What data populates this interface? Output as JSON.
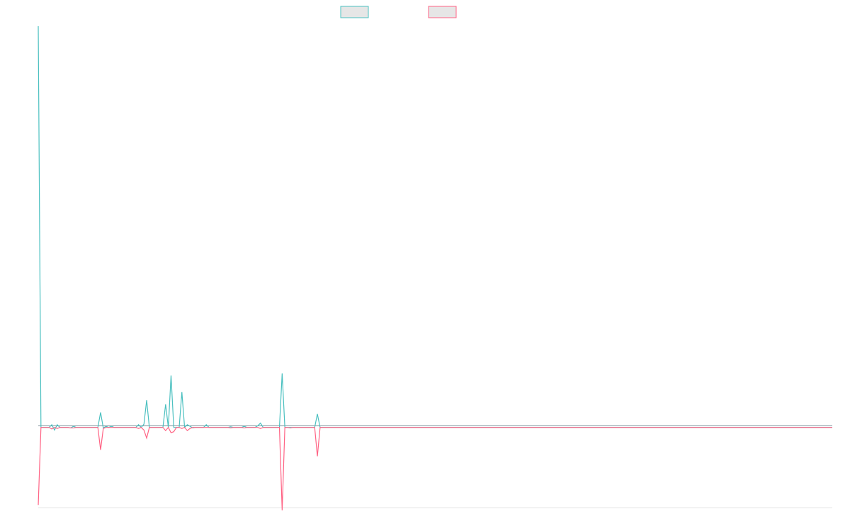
{
  "chart_data": {
    "type": "line",
    "title": "",
    "xlabel": "",
    "ylabel": "",
    "grid": false,
    "legend_position": "top-center",
    "ylim": [
      -1.5,
      7.5
    ],
    "xlim": [
      0,
      293
    ],
    "x": [
      0,
      1,
      2,
      3,
      4,
      5,
      6,
      7,
      8,
      9,
      10,
      11,
      12,
      13,
      14,
      15,
      16,
      17,
      18,
      19,
      20,
      21,
      22,
      23,
      24,
      25,
      26,
      27,
      28,
      29,
      30,
      31,
      32,
      33,
      34,
      35,
      36,
      37,
      38,
      39,
      40,
      41,
      42,
      43,
      44,
      45,
      46,
      47,
      48,
      49,
      50,
      51,
      52,
      53,
      54,
      55,
      56,
      57,
      58,
      59,
      60,
      61,
      62,
      63,
      64,
      65,
      66,
      67,
      68,
      69,
      70,
      71,
      72,
      73,
      74,
      75,
      76,
      77,
      78,
      79,
      80,
      81,
      82,
      83,
      84,
      85,
      86,
      87,
      88,
      89,
      90,
      91,
      92,
      93,
      94,
      95,
      96,
      97,
      98,
      99,
      100,
      101,
      102,
      103,
      104,
      293
    ],
    "series": [
      {
        "color": "#4bc0c0",
        "values": [
          7.5,
          0,
          0,
          0,
          0,
          0.05,
          -0.05,
          0.05,
          0,
          0,
          0,
          0,
          -0.01,
          0.02,
          0,
          0,
          0,
          0,
          0,
          0,
          0,
          0,
          0,
          0.28,
          -0.01,
          0.02,
          0,
          0.02,
          0,
          0,
          0,
          0,
          0,
          0,
          0,
          0,
          0,
          0.05,
          0,
          0.06,
          0.51,
          0,
          0,
          0,
          0,
          0,
          0,
          0.43,
          0,
          0.97,
          0,
          0,
          0,
          0.66,
          0,
          0.05,
          0.02,
          -0.01,
          0,
          0,
          0,
          0,
          0.05,
          0,
          0,
          0,
          0,
          0,
          0,
          0,
          0,
          0.01,
          0,
          0,
          0,
          0,
          0.02,
          0,
          0,
          0,
          0,
          0.03,
          0.08,
          0,
          0,
          0,
          0,
          0,
          0,
          0,
          1.01,
          0,
          0,
          0,
          0,
          0,
          0,
          0,
          0,
          0,
          0,
          0,
          0,
          0.25,
          0,
          0
        ],
        "name": ""
      },
      {
        "color": "#ff6384",
        "values": [
          -1.45,
          0,
          0,
          0,
          0,
          -0.03,
          0,
          -0.02,
          0,
          0,
          0,
          0,
          -0.01,
          -0.01,
          0,
          0,
          0,
          0,
          0,
          0,
          0,
          0,
          0,
          -0.42,
          -0.02,
          0,
          0,
          0,
          0,
          0,
          0,
          0,
          0,
          0,
          0,
          0,
          0,
          -0.02,
          0,
          -0.05,
          -0.2,
          0,
          0,
          0,
          0,
          0,
          0,
          -0.06,
          0,
          -0.1,
          -0.08,
          0,
          0,
          -0.02,
          0,
          -0.06,
          -0.02,
          0,
          0,
          0,
          0,
          0,
          0,
          0,
          0,
          0,
          0,
          0,
          0,
          0,
          0,
          -0.01,
          0,
          0,
          0,
          0,
          -0.01,
          0,
          0,
          0,
          0,
          0,
          -0.02,
          0,
          0,
          0,
          0,
          0,
          0,
          0,
          -1.55,
          0,
          0,
          -0.01,
          0,
          0,
          0,
          0,
          0,
          0,
          0,
          0,
          0,
          -0.54,
          0,
          0
        ],
        "name": ""
      }
    ]
  }
}
